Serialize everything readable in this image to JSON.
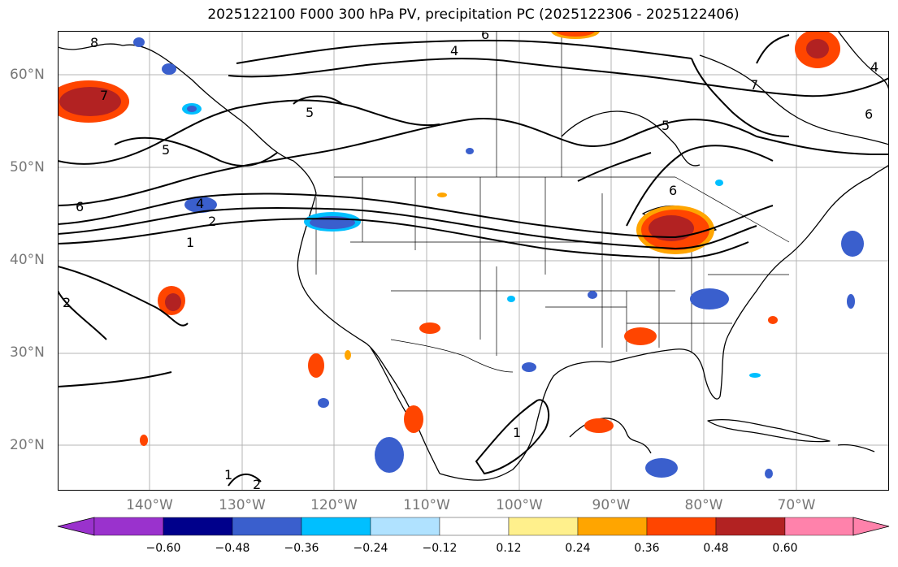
{
  "title": "2025122100 F000 300 hPa PV, precipitation PC (2025122306 - 2025122406)",
  "map": {
    "extent": {
      "lon_min": -150,
      "lon_max": -60,
      "lat_min": 15,
      "lat_max": 65
    },
    "lat_ticks": [
      {
        "value": 60,
        "label": "60°N"
      },
      {
        "value": 50,
        "label": "50°N"
      },
      {
        "value": 40,
        "label": "40°N"
      },
      {
        "value": 30,
        "label": "30°N"
      },
      {
        "value": 20,
        "label": "20°N"
      }
    ],
    "lon_ticks": [
      {
        "value": -140,
        "label": "140°W"
      },
      {
        "value": -130,
        "label": "130°W"
      },
      {
        "value": -120,
        "label": "120°W"
      },
      {
        "value": -110,
        "label": "110°W"
      },
      {
        "value": -100,
        "label": "100°W"
      },
      {
        "value": -90,
        "label": "90°W"
      },
      {
        "value": -80,
        "label": "80°W"
      },
      {
        "value": -70,
        "label": "70°W"
      }
    ],
    "gridlines": true,
    "contour_labels": [
      "1",
      "2",
      "4",
      "5",
      "6",
      "7",
      "8"
    ],
    "anomaly_areas": [
      {
        "region": "Gulf of Alaska",
        "sign": "positive",
        "peak": 0.55
      },
      {
        "region": "Great Lakes",
        "sign": "positive",
        "peak": 0.55
      },
      {
        "region": "Labrador",
        "sign": "positive",
        "peak": 0.5
      },
      {
        "region": "Hudson Bay north",
        "sign": "positive",
        "peak": 0.35
      },
      {
        "region": "Pacific ~35N 137W",
        "sign": "positive",
        "peak": 0.5
      },
      {
        "region": "Mississippi/Alabama",
        "sign": "positive",
        "peak": 0.45
      },
      {
        "region": "Baja California",
        "sign": "positive",
        "peak": 0.4
      },
      {
        "region": "Southern Mexico",
        "sign": "positive",
        "peak": 0.4
      },
      {
        "region": "Pacific NW coast",
        "sign": "negative",
        "peak": -0.4
      },
      {
        "region": "North Carolina",
        "sign": "negative",
        "peak": -0.45
      },
      {
        "region": "Eastern Pacific ~20N",
        "sign": "negative",
        "peak": -0.45
      },
      {
        "region": "Western Caribbean",
        "sign": "negative",
        "peak": -0.4
      },
      {
        "region": "Atlantic ~42N 62W",
        "sign": "negative",
        "peak": -0.4
      }
    ]
  },
  "colorbar": {
    "ticks": [
      "−0.60",
      "−0.48",
      "−0.36",
      "−0.24",
      "−0.12",
      "0.12",
      "0.24",
      "0.36",
      "0.48",
      "0.60"
    ],
    "colors": [
      "#9a32cd",
      "#00008b",
      "#3a5fcd",
      "#00bfff",
      "#b0e2ff",
      "#ffffff",
      "#fff08c",
      "#ffa500",
      "#ff4500",
      "#b22222",
      "#ff82ab"
    ]
  }
}
